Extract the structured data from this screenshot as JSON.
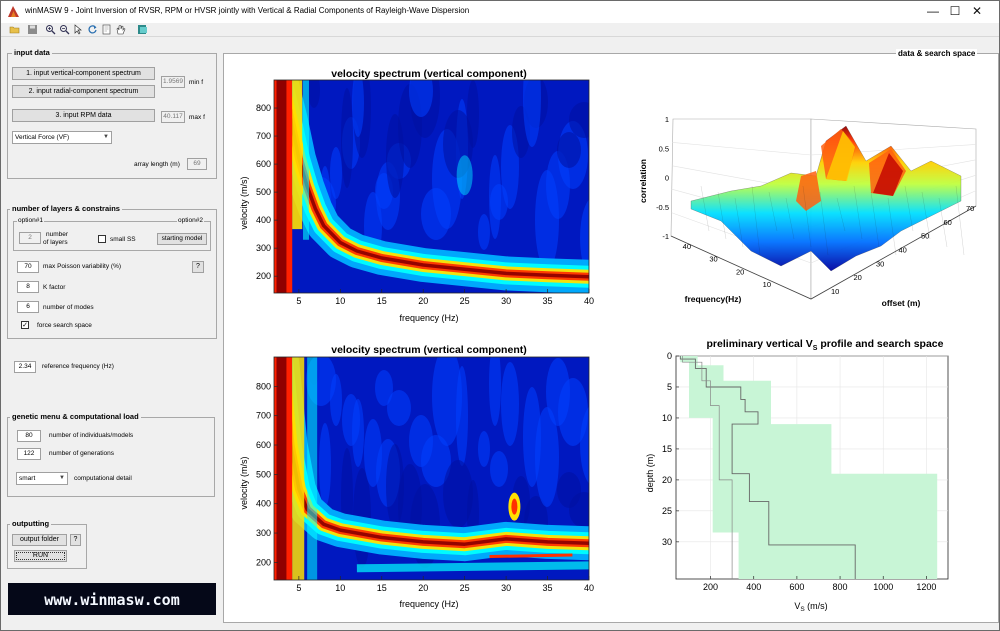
{
  "window": {
    "title": "winMASW 9 - Joint Inversion of RVSR, RPM or HVSR jointly with Vertical & Radial Components of Rayleigh-Wave Dispersion",
    "minimize": "—",
    "maximize": "☐",
    "close": "✕"
  },
  "input_data": {
    "title": "input data",
    "btn_vertical": "1. input vertical-component spectrum",
    "btn_radial": "2. input radial-component spectrum",
    "btn_rpm": "3. input RPM data",
    "min_f_value": "1.9569",
    "min_f_label": "min f",
    "max_f_value": "40.117",
    "max_f_label": "max f",
    "source_select": "Vertical Force (VF)",
    "array_length_label": "array length (m)",
    "array_length_value": "69"
  },
  "layers": {
    "title": "number of layers & constrains",
    "option1": "option#1",
    "option2": "option#2",
    "num_layers_value": "2",
    "num_layers_label_1": "number",
    "num_layers_label_2": "of layers",
    "small_ss_label": "small SS",
    "starting_model_btn": "starting model",
    "poisson_value": "70",
    "poisson_label": "max Poisson variability (%)",
    "help_btn": "?",
    "k_value": "8",
    "k_label": "K factor",
    "modes_value": "6",
    "modes_label": "number of modes",
    "force_label": "force search space",
    "force_checked": "✓"
  },
  "reference": {
    "value": "2.34",
    "label": "reference frequency (Hz)"
  },
  "genetic": {
    "title": "genetic menu & computational load",
    "individuals_value": "80",
    "individuals_label": "number of individuals/models",
    "generations_value": "122",
    "generations_label": "number of generations",
    "detail_select": "smart",
    "detail_label": "computational detail"
  },
  "outputting": {
    "title": "outputting",
    "folder_btn": "output folder",
    "help_btn": "?",
    "run_btn": "RUN"
  },
  "logo": "www.winmasw.com",
  "right_panel_title": "data & search space",
  "chart_data": [
    {
      "type": "heatmap",
      "title": "velocity spectrum (vertical component)",
      "xlabel": "frequency (Hz)",
      "ylabel": "velocity (m/s)",
      "xticks": [
        "5",
        "10",
        "15",
        "20",
        "25",
        "30",
        "35",
        "40"
      ],
      "yticks": [
        "200",
        "300",
        "400",
        "500",
        "600",
        "700",
        "800"
      ],
      "xlim": [
        2,
        40
      ],
      "ylim": [
        140,
        900
      ],
      "ridge": [
        [
          3.0,
          880
        ],
        [
          4.0,
          760
        ],
        [
          5.0,
          620
        ],
        [
          6.0,
          520
        ],
        [
          7.0,
          440
        ],
        [
          8.0,
          380
        ],
        [
          10.0,
          320
        ],
        [
          12.0,
          290
        ],
        [
          15.0,
          265
        ],
        [
          20.0,
          240
        ],
        [
          25.0,
          225
        ],
        [
          30.0,
          210
        ],
        [
          35.0,
          203
        ],
        [
          40.0,
          198
        ]
      ],
      "colormap": [
        "#00008f",
        "#0000ff",
        "#00ffff",
        "#ffff00",
        "#ff0000",
        "#800000"
      ]
    },
    {
      "type": "heatmap",
      "title": "velocity spectrum (vertical component)",
      "xlabel": "frequency (Hz)",
      "ylabel": "velocity (m/s)",
      "xticks": [
        "5",
        "10",
        "15",
        "20",
        "25",
        "30",
        "35",
        "40"
      ],
      "yticks": [
        "200",
        "300",
        "400",
        "500",
        "600",
        "700",
        "800"
      ],
      "xlim": [
        2,
        40
      ],
      "ylim": [
        140,
        900
      ],
      "ridge": [
        [
          3.0,
          880
        ],
        [
          4.0,
          600
        ],
        [
          5.0,
          450
        ],
        [
          6.0,
          380
        ],
        [
          8.0,
          330
        ],
        [
          10.0,
          310
        ],
        [
          15.0,
          285
        ],
        [
          20.0,
          270
        ],
        [
          25.0,
          262
        ],
        [
          30.0,
          280
        ],
        [
          35.0,
          270
        ],
        [
          40.0,
          265
        ]
      ]
    },
    {
      "type": "surface",
      "xlabel": "offset (m)",
      "ylabel": "frequency(Hz)",
      "zlabel": "correlation",
      "xticks": [
        "10",
        "20",
        "30",
        "40",
        "50",
        "60",
        "70"
      ],
      "yticks": [
        "10",
        "20",
        "30",
        "40"
      ],
      "zticks": [
        "-1",
        "-0.5",
        "0",
        "0.5",
        "1"
      ]
    },
    {
      "type": "line",
      "title_main": "preliminary vertical V",
      "title_sub": "S",
      "title_tail": " profile and search space",
      "xlabel_main": "V",
      "xlabel_sub": "S",
      "xlabel_tail": " (m/s)",
      "ylabel": "depth (m)",
      "xticks": [
        "200",
        "400",
        "600",
        "800",
        "1000",
        "1200"
      ],
      "yticks": [
        "0",
        "5",
        "10",
        "15",
        "20",
        "25",
        "30"
      ],
      "xlim": [
        40,
        1300
      ],
      "ylim": [
        0,
        36
      ],
      "search_space_color": "#c8f5d6",
      "profile_color": "#666666"
    }
  ]
}
